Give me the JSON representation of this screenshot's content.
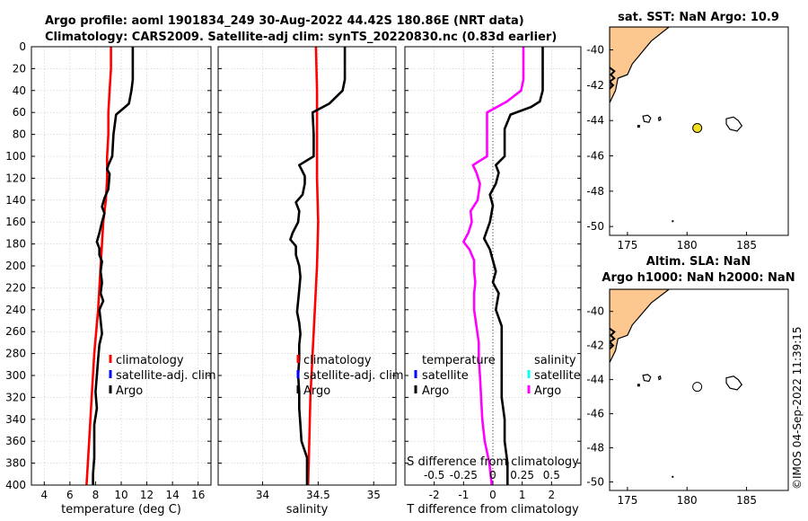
{
  "header": {
    "title_line1": "Argo profile: aoml 1901834_249 30-Aug-2022 44.42S 180.86E (NRT data)",
    "title_line2": "Climatology: CARS2009. Satellite-adj clim: synTS_20220830.nc (0.83d earlier)"
  },
  "stamp": "©IMOS 04-Sep-2022 11:39:15",
  "colors": {
    "argo": "#000000",
    "climatology": "#ff0000",
    "satellite": "#0000ff",
    "tdiff": "#000000",
    "sdiff": "#ff00ff",
    "sat_sal": "#00ffff",
    "land": "#fcc890",
    "float_marker": "#f0e020"
  },
  "chart_data": [
    {
      "type": "line",
      "id": "temperature",
      "xlabel": "temperature (deg C)",
      "ylabel": "",
      "xlim": [
        3,
        17
      ],
      "ylim": [
        0,
        400
      ],
      "xticks": [
        4,
        6,
        8,
        10,
        12,
        14,
        16
      ],
      "yticks": [
        0,
        20,
        40,
        60,
        80,
        100,
        120,
        140,
        160,
        180,
        200,
        220,
        240,
        260,
        280,
        300,
        320,
        340,
        360,
        380,
        400
      ],
      "grid": true,
      "y_reversed": true,
      "legend": {
        "placement": "lower-right",
        "entries": [
          "climatology",
          "satellite-adj. clim",
          "Argo"
        ]
      },
      "series": [
        {
          "name": "climatology",
          "color": "#ff0000",
          "depth": [
            0,
            20,
            40,
            60,
            80,
            100,
            120,
            140,
            160,
            180,
            200,
            240,
            280,
            320,
            360,
            400
          ],
          "values": [
            9.2,
            9.2,
            9.1,
            9.0,
            9.0,
            8.9,
            8.9,
            8.8,
            8.6,
            8.5,
            8.4,
            8.2,
            7.9,
            7.7,
            7.5,
            7.3
          ]
        },
        {
          "name": "Argo",
          "color": "#000000",
          "depth": [
            0,
            30,
            40,
            52,
            55,
            62,
            80,
            100,
            108,
            112,
            116,
            130,
            138,
            146,
            152,
            160,
            170,
            178,
            184,
            190,
            196,
            205,
            215,
            225,
            232,
            240,
            250,
            262,
            272,
            285,
            300,
            315,
            330,
            345,
            360,
            375,
            390,
            400
          ],
          "values": [
            10.9,
            10.9,
            10.8,
            10.6,
            10.3,
            9.6,
            9.4,
            9.3,
            9.0,
            8.9,
            9.1,
            9.0,
            8.7,
            8.5,
            8.7,
            8.5,
            8.3,
            8.1,
            8.3,
            8.3,
            8.5,
            8.4,
            8.5,
            8.4,
            8.6,
            8.3,
            8.4,
            8.5,
            8.3,
            8.2,
            8.1,
            8.0,
            8.1,
            7.9,
            7.9,
            7.9,
            7.8,
            7.8
          ]
        }
      ]
    },
    {
      "type": "line",
      "id": "salinity",
      "xlabel": "salinity",
      "ylabel": "",
      "xlim": [
        33.6,
        35.2
      ],
      "ylim": [
        0,
        400
      ],
      "xticks": [
        34,
        34.5,
        35
      ],
      "grid": true,
      "y_reversed": true,
      "legend": {
        "placement": "lower-right",
        "entries": [
          "climatology",
          "satellite-adj. clim",
          "Argo"
        ]
      },
      "series": [
        {
          "name": "climatology",
          "color": "#ff0000",
          "depth": [
            0,
            40,
            80,
            120,
            160,
            200,
            240,
            280,
            320,
            360,
            400
          ],
          "values": [
            34.48,
            34.49,
            34.49,
            34.49,
            34.5,
            34.49,
            34.47,
            34.45,
            34.43,
            34.42,
            34.41
          ]
        },
        {
          "name": "Argo",
          "color": "#000000",
          "depth": [
            0,
            30,
            40,
            52,
            60,
            80,
            100,
            108,
            112,
            118,
            125,
            135,
            142,
            150,
            160,
            170,
            176,
            182,
            190,
            200,
            210,
            222,
            232,
            242,
            252,
            262,
            272,
            285,
            300,
            315,
            330,
            345,
            360,
            375,
            390,
            400
          ],
          "values": [
            34.74,
            34.74,
            34.72,
            34.6,
            34.45,
            34.46,
            34.46,
            34.33,
            34.35,
            34.38,
            34.38,
            34.36,
            34.3,
            34.33,
            34.32,
            34.27,
            34.25,
            34.3,
            34.3,
            34.33,
            34.34,
            34.33,
            34.32,
            34.31,
            34.33,
            34.34,
            34.33,
            34.33,
            34.32,
            34.33,
            34.33,
            34.34,
            34.35,
            34.4,
            34.4,
            34.4
          ]
        }
      ]
    },
    {
      "type": "line",
      "id": "differences",
      "xlabel": "T difference from climatology",
      "top_xlabel": "S difference from climatology",
      "xlim": [
        -3,
        3
      ],
      "ylim": [
        0,
        400
      ],
      "xticks": [
        -2,
        -1,
        0,
        1,
        2
      ],
      "top_xticks": [
        -0.5,
        -0.25,
        0,
        0.25,
        0.5
      ],
      "top_xtick_labels": [
        "-0.5",
        "-0.25",
        "0",
        "0.25",
        "0.5"
      ],
      "grid": true,
      "y_reversed": true,
      "legend_temperature": {
        "header": "temperature",
        "entries": [
          "satellite",
          "Argo"
        ]
      },
      "legend_salinity": {
        "header": "salinity",
        "entries": [
          "satellite",
          "Argo"
        ]
      },
      "series": [
        {
          "name": "T difference (Argo)",
          "color": "#000000",
          "depth": [
            0,
            30,
            40,
            50,
            55,
            62,
            75,
            90,
            100,
            108,
            115,
            125,
            135,
            145,
            160,
            175,
            185,
            195,
            205,
            215,
            225,
            240,
            255,
            270,
            285,
            300,
            320,
            340,
            360,
            380,
            400
          ],
          "values": [
            1.7,
            1.7,
            1.7,
            1.6,
            1.3,
            0.6,
            0.4,
            0.4,
            0.4,
            0.1,
            0.2,
            0.1,
            -0.1,
            0.0,
            -0.1,
            -0.3,
            -0.1,
            0.0,
            0.1,
            0.0,
            0.2,
            0.1,
            0.3,
            0.3,
            0.3,
            0.3,
            0.3,
            0.4,
            0.4,
            0.5,
            0.5
          ]
        },
        {
          "name": "S difference (Argo)",
          "color": "#ff00ff",
          "depth": [
            0,
            30,
            40,
            50,
            60,
            80,
            100,
            108,
            115,
            125,
            140,
            150,
            160,
            170,
            178,
            185,
            195,
            205,
            215,
            225,
            240,
            255,
            270,
            285,
            300,
            320,
            340,
            360,
            380,
            400
          ],
          "values": [
            0.26,
            0.26,
            0.24,
            0.12,
            -0.05,
            -0.05,
            -0.05,
            -0.17,
            -0.14,
            -0.11,
            -0.13,
            -0.19,
            -0.18,
            -0.21,
            -0.25,
            -0.2,
            -0.16,
            -0.16,
            -0.15,
            -0.16,
            -0.16,
            -0.14,
            -0.12,
            -0.12,
            -0.11,
            -0.1,
            -0.09,
            -0.07,
            -0.03,
            -0.01
          ]
        }
      ]
    },
    {
      "type": "map",
      "id": "sst_map",
      "title": "sat. SST: NaN Argo: 10.9",
      "xlim": [
        173.5,
        188.5
      ],
      "ylim": [
        -50.5,
        -38.7
      ],
      "xticks": [
        175,
        180,
        185
      ],
      "yticks": [
        -40,
        -42,
        -44,
        -46,
        -48,
        -50
      ],
      "ytick_labels": [
        "-40",
        "-42",
        "-44",
        "-46",
        "-48",
        "-50"
      ],
      "float_position": {
        "lon": 180.86,
        "lat": -44.42
      }
    },
    {
      "type": "map",
      "id": "sla_map",
      "title_line1": "Altim. SLA: NaN",
      "title_line2": "Argo h1000: NaN h2000: NaN",
      "xlim": [
        173.5,
        188.5
      ],
      "ylim": [
        -50.5,
        -38.7
      ],
      "xticks": [
        175,
        180,
        185
      ],
      "yticks": [
        -40,
        -42,
        -44,
        -46,
        -48,
        -50
      ],
      "ytick_labels": [
        "-40",
        "-42",
        "-44",
        "-46",
        "-48",
        "-50"
      ],
      "float_position": {
        "lon": 180.86,
        "lat": -44.42
      }
    }
  ]
}
